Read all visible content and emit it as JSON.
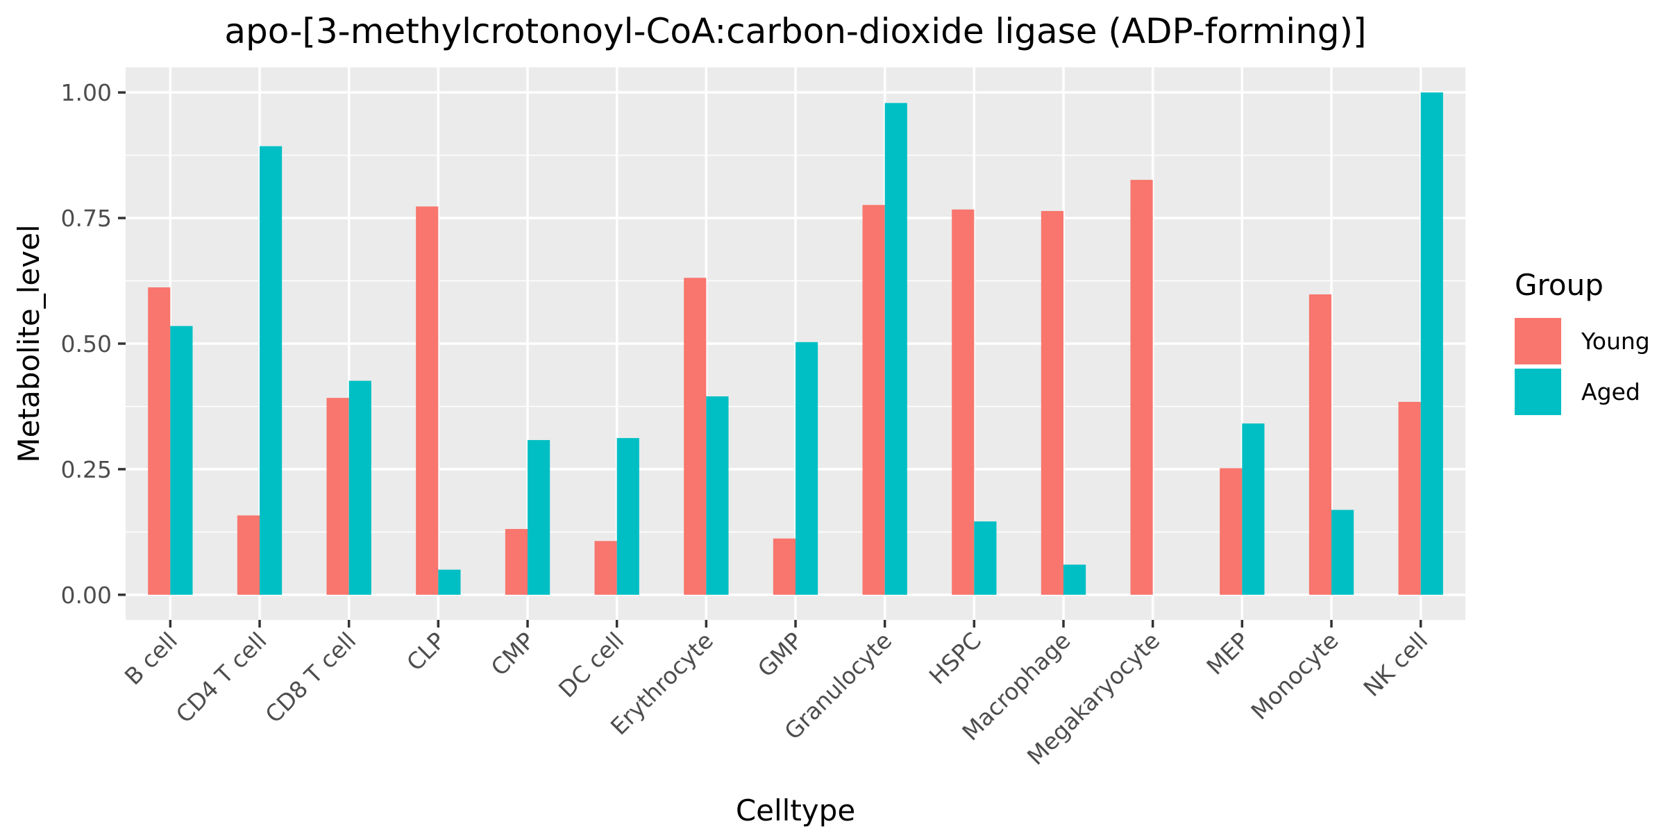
{
  "chart_data": {
    "type": "bar",
    "title": "apo-[3-methylcrotonoyl-CoA:carbon-dioxide ligase (ADP-forming)]",
    "xlabel": "Celltype",
    "ylabel": "Metabolite_level",
    "ylim": [
      -0.05,
      1.05
    ],
    "yticks": [
      0.0,
      0.25,
      0.5,
      0.75,
      1.0
    ],
    "ytick_labels": [
      "0.00",
      "0.25",
      "0.50",
      "0.75",
      "1.00"
    ],
    "grid": true,
    "legend_position": "right",
    "legend_title": "Group",
    "categories": [
      "B cell",
      "CD4 T cell",
      "CD8 T cell",
      "CLP",
      "CMP",
      "DC cell",
      "Erythrocyte",
      "GMP",
      "Granulocyte",
      "HSPC",
      "Macrophage",
      "Megakaryocyte",
      "MEP",
      "Monocyte",
      "NK cell"
    ],
    "series": [
      {
        "name": "Young",
        "color": "#F8766D",
        "values": [
          0.612,
          0.158,
          0.392,
          0.773,
          0.131,
          0.107,
          0.631,
          0.112,
          0.776,
          0.767,
          0.764,
          0.826,
          0.252,
          0.598,
          0.384
        ]
      },
      {
        "name": "Aged",
        "color": "#00BFC4",
        "values": [
          0.535,
          0.893,
          0.426,
          0.05,
          0.308,
          0.312,
          0.395,
          0.503,
          0.979,
          0.146,
          0.06,
          null,
          0.341,
          0.169,
          1.0
        ]
      }
    ]
  }
}
